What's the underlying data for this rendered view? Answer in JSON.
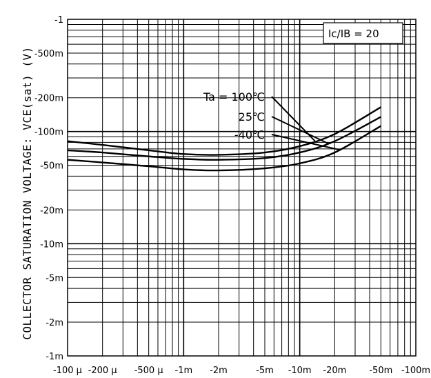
{
  "chart_data": {
    "type": "line",
    "title": "",
    "xlabel": "",
    "ylabel": "COLLECTOR SATURATION VOLTAGE: VCE(sat)  (V)",
    "x_scale": "log",
    "y_scale": "log",
    "xlim": [
      -0.0001,
      -0.1
    ],
    "ylim": [
      -0.001,
      -1
    ],
    "grid": true,
    "x_ticks": [
      "-100 µ",
      "-200 µ",
      "-500 µ",
      "-1m",
      "-2m",
      "-5m",
      "-10m",
      "-20m",
      "-50m",
      "-100m"
    ],
    "y_ticks": [
      "-1",
      "-500m",
      "-200m",
      "-100m",
      "-50m",
      "-20m",
      "-10m",
      "-5m",
      "-2m",
      "-1m"
    ],
    "legend_box": "Ic/IB = 20",
    "annotation_prefix": "Ta = ",
    "series": [
      {
        "name": "100℃",
        "x": [
          -0.0001,
          -0.0002,
          -0.0005,
          -0.001,
          -0.002,
          -0.005,
          -0.01,
          -0.02,
          -0.05
        ],
        "y": [
          -0.082,
          -0.076,
          -0.068,
          -0.063,
          -0.062,
          -0.065,
          -0.074,
          -0.095,
          -0.165
        ]
      },
      {
        "name": "25℃",
        "x": [
          -0.0001,
          -0.0002,
          -0.0005,
          -0.001,
          -0.002,
          -0.005,
          -0.01,
          -0.02,
          -0.05
        ],
        "y": [
          -0.068,
          -0.065,
          -0.06,
          -0.057,
          -0.056,
          -0.058,
          -0.065,
          -0.082,
          -0.135
        ]
      },
      {
        "name": "-40℃",
        "x": [
          -0.0001,
          -0.0002,
          -0.0005,
          -0.001,
          -0.002,
          -0.005,
          -0.01,
          -0.02,
          -0.05
        ],
        "y": [
          -0.056,
          -0.053,
          -0.049,
          -0.046,
          -0.045,
          -0.047,
          -0.052,
          -0.065,
          -0.112
        ]
      }
    ]
  }
}
